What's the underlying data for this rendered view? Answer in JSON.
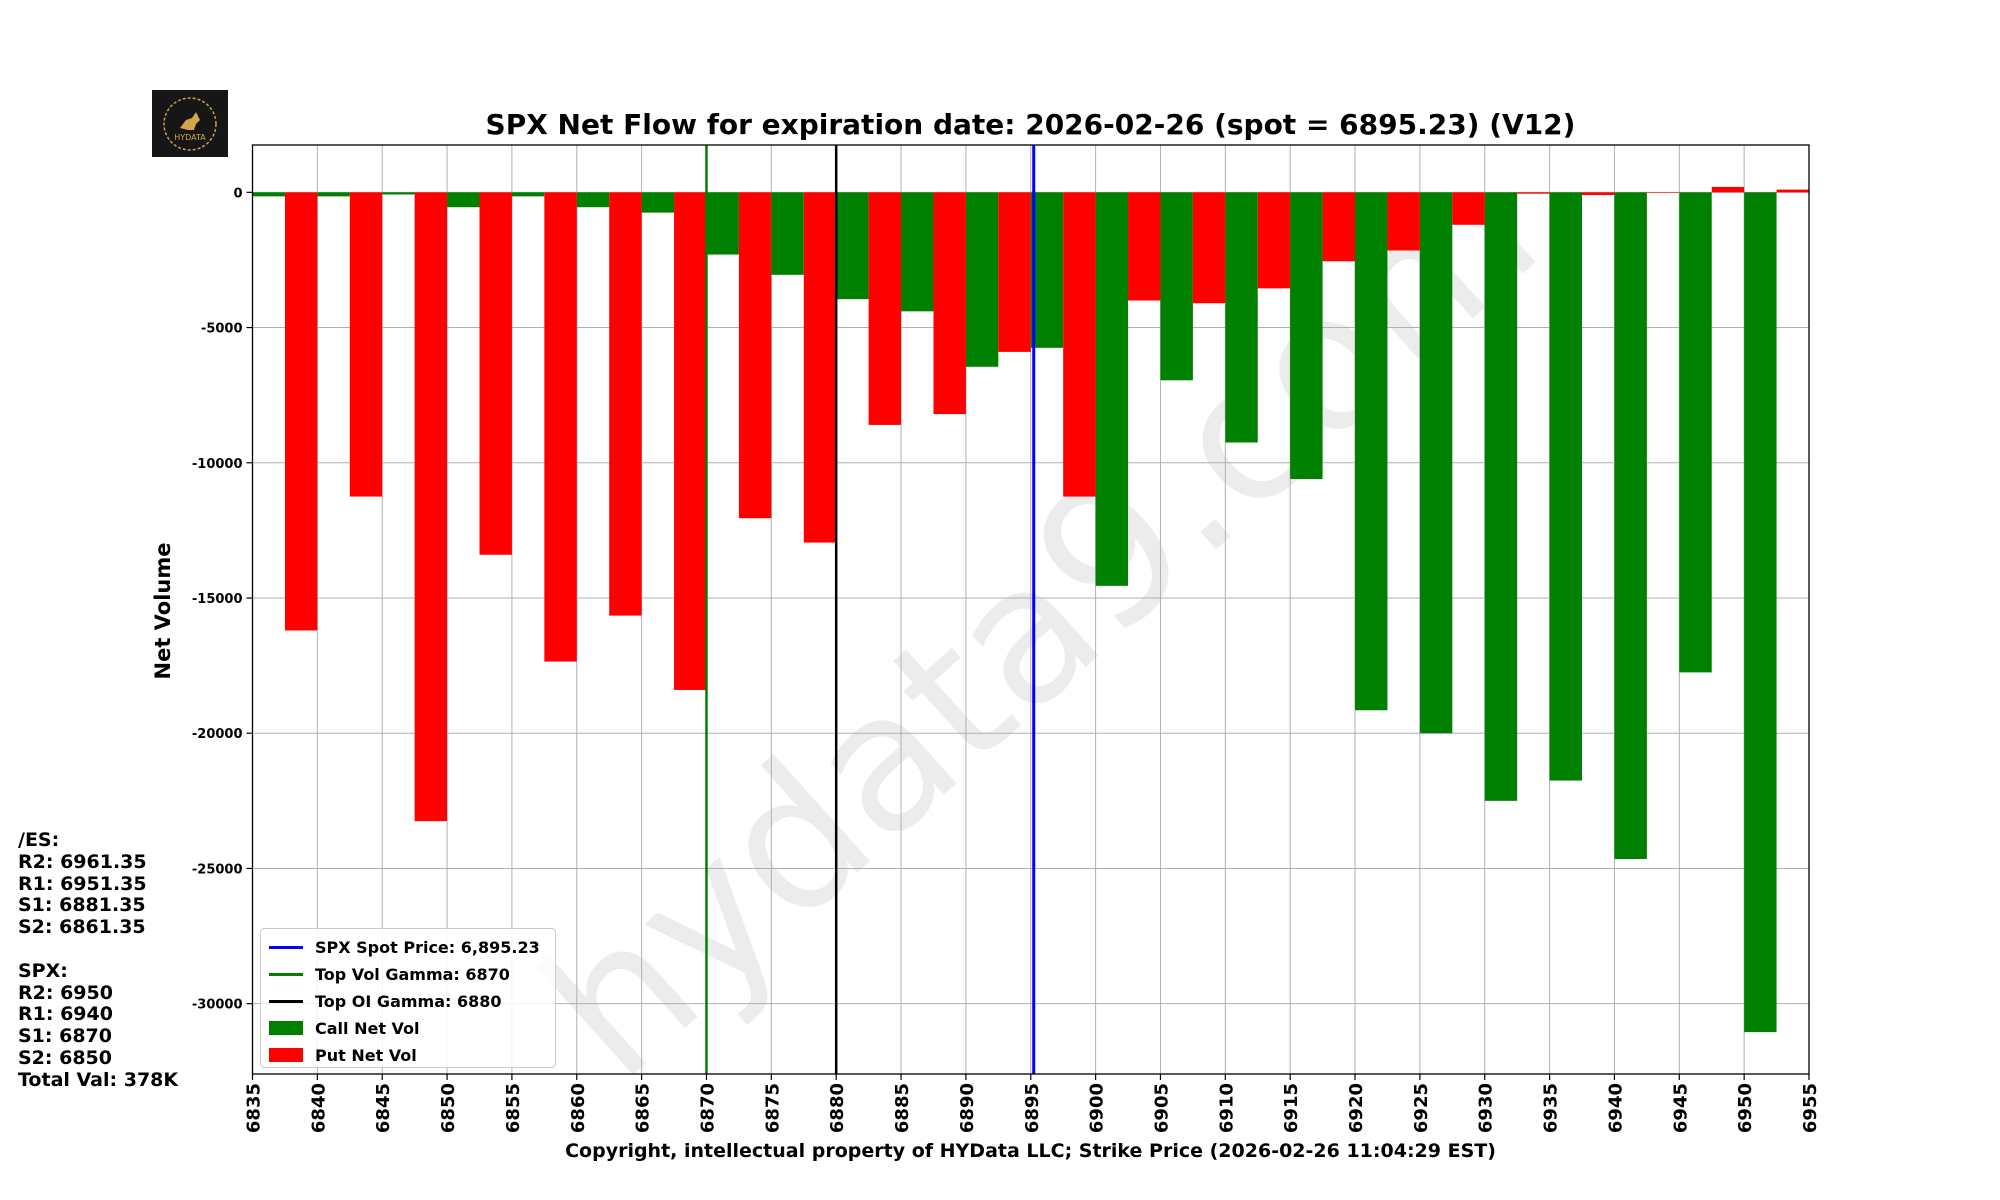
{
  "chart_data": {
    "type": "bar",
    "title": "SPX Net Flow for expiration date: 2026-02-26 (spot = 6895.23) (V12)",
    "xlabel": "Copyright, intellectual property of HYData LLC; Strike Price (2026-02-26 11:04:29 EST)",
    "ylabel": "Net Volume",
    "xlim": [
      6835,
      6955
    ],
    "ylim": [
      -32600,
      1750
    ],
    "grid": true,
    "legend_placement": "lower-left",
    "x_ticks": [
      "6835",
      "6840",
      "6845",
      "6850",
      "6855",
      "6860",
      "6865",
      "6870",
      "6875",
      "6880",
      "6885",
      "6890",
      "6895",
      "6900",
      "6905",
      "6910",
      "6915",
      "6920",
      "6925",
      "6930",
      "6935",
      "6940",
      "6945",
      "6950",
      "6955"
    ],
    "y_ticks": [
      "0",
      "-5000",
      "-10000",
      "-15000",
      "-20000",
      "-25000",
      "-30000"
    ],
    "y_tick_values": [
      0,
      -5000,
      -10000,
      -15000,
      -20000,
      -25000,
      -30000
    ],
    "categories": [
      6835,
      6840,
      6845,
      6850,
      6855,
      6860,
      6865,
      6870,
      6875,
      6880,
      6885,
      6890,
      6895,
      6900,
      6905,
      6910,
      6915,
      6920,
      6925,
      6930,
      6935,
      6940,
      6945,
      6950
    ],
    "series": [
      {
        "name": "Call Net Vol",
        "color": "#008000",
        "values": [
          -150,
          -150,
          -80,
          -550,
          -150,
          -550,
          -750,
          -2300,
          -3050,
          -3950,
          -4400,
          -6450,
          -5750,
          -14550,
          -6950,
          -9250,
          -10600,
          -19150,
          -20000,
          -22500,
          -21750,
          -24650,
          -17750,
          -31050
        ]
      },
      {
        "name": "Put Net Vol",
        "color": "#ff0000",
        "values": [
          -16200,
          -11250,
          -23250,
          -13400,
          -17350,
          -15650,
          -18400,
          -12050,
          -12950,
          -8600,
          -8200,
          -5900,
          -11250,
          -4000,
          -4100,
          -3550,
          -2550,
          -2150,
          -1200,
          -50,
          -100,
          0,
          200,
          100
        ]
      }
    ],
    "vlines": [
      {
        "label": "SPX Spot Price: 6,895.23",
        "x": 6895.23,
        "color": "#0000ff"
      },
      {
        "label": "Top Vol Gamma: 6870",
        "x": 6870,
        "color": "#008000"
      },
      {
        "label": "Top OI Gamma: 6880",
        "x": 6880,
        "color": "#000000"
      }
    ]
  },
  "logo_text": "HYDATA",
  "watermark": "hydata9.com",
  "levels": {
    "es_header": "/ES:",
    "es": [
      "R2: 6961.35",
      "R1: 6951.35",
      "S1: 6881.35",
      "S2: 6861.35"
    ],
    "spx_header": "SPX:",
    "spx": [
      "R2: 6950",
      "R1: 6940",
      "S1: 6870",
      "S2: 6850"
    ],
    "total": "Total Val: 378K"
  }
}
